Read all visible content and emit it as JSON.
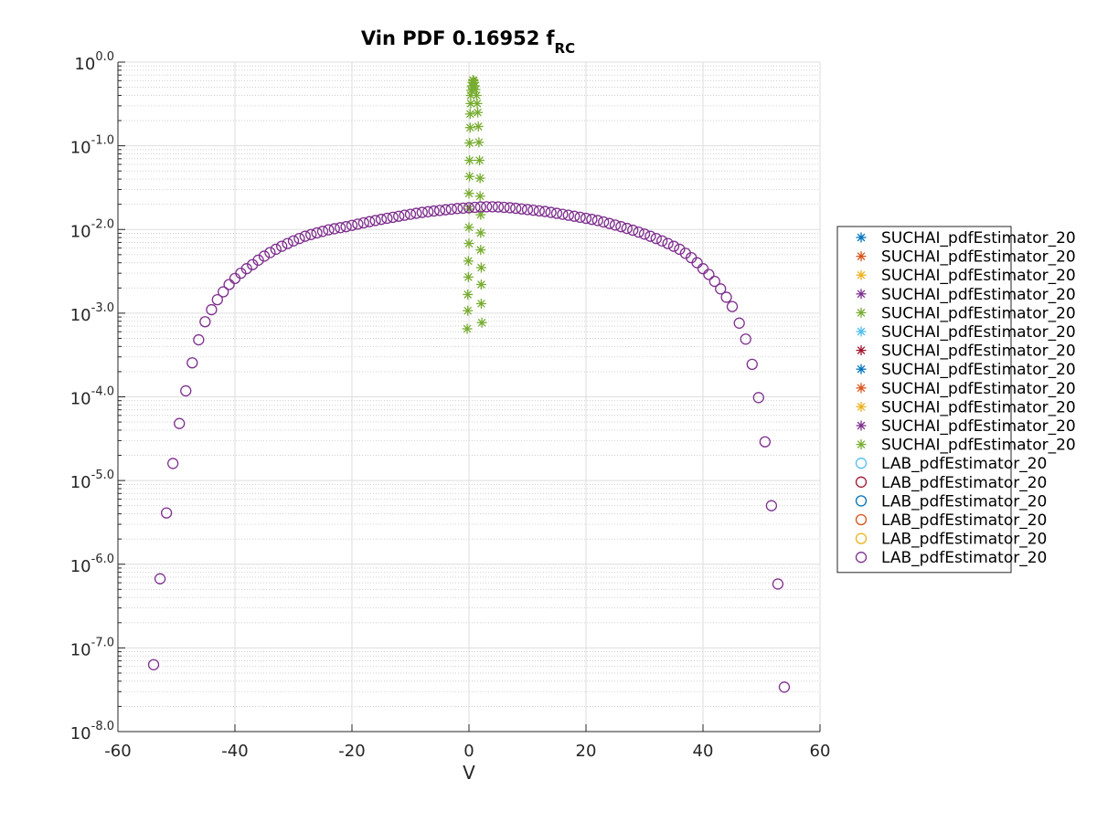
{
  "chart_data": {
    "type": "scatter",
    "title": "Vin PDF 0.16952",
    "title_subscript_prefix": "f",
    "title_subscript": "RC",
    "xlabel": "V",
    "ylabel": "",
    "xlim": [
      -60,
      60
    ],
    "ylim": [
      1e-08,
      1
    ],
    "yscale": "log",
    "grid": true,
    "minor_grid": true,
    "legend_position": "outside-right",
    "x_ticks": [
      -60,
      -40,
      -20,
      0,
      20,
      40,
      60
    ],
    "x_tick_labels": [
      "-60",
      "-40",
      "-20",
      "0",
      "20",
      "40",
      "60"
    ],
    "y_ticks": [
      {
        "base": "10",
        "exp": "0.0",
        "value": 1
      },
      {
        "base": "10",
        "exp": "-1.0",
        "value": 0.1
      },
      {
        "base": "10",
        "exp": "-2.0",
        "value": 0.01
      },
      {
        "base": "10",
        "exp": "-3.0",
        "value": 0.001
      },
      {
        "base": "10",
        "exp": "-4.0",
        "value": 0.0001
      },
      {
        "base": "10",
        "exp": "-5.0",
        "value": 1e-05
      },
      {
        "base": "10",
        "exp": "-6.0",
        "value": 1e-06
      },
      {
        "base": "10",
        "exp": "-7.0",
        "value": 1e-07
      },
      {
        "base": "10",
        "exp": "-8.0",
        "value": 1e-08
      }
    ],
    "legend": [
      {
        "name": "SUCHAI_pdfEstimator_20",
        "marker": "star",
        "color": "#0072BD"
      },
      {
        "name": "SUCHAI_pdfEstimator_20",
        "marker": "star",
        "color": "#D95319"
      },
      {
        "name": "SUCHAI_pdfEstimator_20",
        "marker": "star",
        "color": "#EDB120"
      },
      {
        "name": "SUCHAI_pdfEstimator_20",
        "marker": "star",
        "color": "#7E2F8E"
      },
      {
        "name": "SUCHAI_pdfEstimator_20",
        "marker": "star",
        "color": "#77AC30"
      },
      {
        "name": "SUCHAI_pdfEstimator_20",
        "marker": "star",
        "color": "#4DBEEE"
      },
      {
        "name": "SUCHAI_pdfEstimator_20",
        "marker": "star",
        "color": "#A2142F"
      },
      {
        "name": "SUCHAI_pdfEstimator_20",
        "marker": "star",
        "color": "#0072BD"
      },
      {
        "name": "SUCHAI_pdfEstimator_20",
        "marker": "star",
        "color": "#D95319"
      },
      {
        "name": "SUCHAI_pdfEstimator_20",
        "marker": "star",
        "color": "#EDB120"
      },
      {
        "name": "SUCHAI_pdfEstimator_20",
        "marker": "star",
        "color": "#7E2F8E"
      },
      {
        "name": "SUCHAI_pdfEstimator_20",
        "marker": "star",
        "color": "#77AC30"
      },
      {
        "name": "LAB_pdfEstimator_20",
        "marker": "circle",
        "color": "#4DBEEE"
      },
      {
        "name": "LAB_pdfEstimator_20",
        "marker": "circle",
        "color": "#A2142F"
      },
      {
        "name": "LAB_pdfEstimator_20",
        "marker": "circle",
        "color": "#0072BD"
      },
      {
        "name": "LAB_pdfEstimator_20",
        "marker": "circle",
        "color": "#D95319"
      },
      {
        "name": "LAB_pdfEstimator_20",
        "marker": "circle",
        "color": "#EDB120"
      },
      {
        "name": "LAB_pdfEstimator_20",
        "marker": "circle",
        "color": "#7E2F8E"
      }
    ],
    "series": [
      {
        "legend_index": 11,
        "marker": "star",
        "color": "#77AC30",
        "points": [
          [
            -0.3,
            0.00065
          ],
          [
            -0.2,
            0.00107
          ],
          [
            -0.2,
            0.00167
          ],
          [
            -0.1,
            0.0027
          ],
          [
            -0.1,
            0.0042
          ],
          [
            0.0,
            0.0068
          ],
          [
            0.0,
            0.0106
          ],
          [
            0.0,
            0.0175
          ],
          [
            0.0,
            0.027
          ],
          [
            0.1,
            0.043
          ],
          [
            0.1,
            0.067
          ],
          [
            0.1,
            0.108
          ],
          [
            0.2,
            0.165
          ],
          [
            0.2,
            0.24
          ],
          [
            0.3,
            0.32
          ],
          [
            0.3,
            0.4
          ],
          [
            0.4,
            0.46
          ],
          [
            0.5,
            0.52
          ],
          [
            0.6,
            0.57
          ],
          [
            0.7,
            0.61
          ],
          [
            0.8,
            0.6
          ],
          [
            0.9,
            0.57
          ],
          [
            1.0,
            0.52
          ],
          [
            1.1,
            0.47
          ],
          [
            1.3,
            0.4
          ],
          [
            1.4,
            0.32
          ],
          [
            1.5,
            0.25
          ],
          [
            1.6,
            0.17
          ],
          [
            1.7,
            0.11
          ],
          [
            1.8,
            0.067
          ],
          [
            1.9,
            0.041
          ],
          [
            1.9,
            0.025
          ],
          [
            2.0,
            0.015
          ],
          [
            2.0,
            0.0091
          ],
          [
            2.0,
            0.0057
          ],
          [
            2.1,
            0.0035
          ],
          [
            2.1,
            0.0022
          ],
          [
            2.1,
            0.0013
          ],
          [
            2.2,
            0.00077
          ]
        ]
      },
      {
        "legend_index": 17,
        "marker": "circle",
        "color": "#7E2F8E",
        "points": [
          [
            -53.9,
            6.3e-08
          ],
          [
            -52.8,
            6.7e-07
          ],
          [
            -51.7,
            4.1e-06
          ],
          [
            -50.6,
            1.6e-05
          ],
          [
            -49.5,
            4.8e-05
          ],
          [
            -48.4,
            0.000118
          ],
          [
            -47.3,
            0.000255
          ],
          [
            -46.2,
            0.00048
          ],
          [
            -45.1,
            0.00079
          ],
          [
            -44.0,
            0.0011
          ],
          [
            -43.0,
            0.00145
          ],
          [
            -42.0,
            0.0018
          ],
          [
            -41.0,
            0.0022
          ],
          [
            -40.0,
            0.0026
          ],
          [
            -39.0,
            0.003
          ],
          [
            -38.0,
            0.0034
          ],
          [
            -37.0,
            0.0038
          ],
          [
            -36.0,
            0.0043
          ],
          [
            -35.0,
            0.0048
          ],
          [
            -34.0,
            0.0053
          ],
          [
            -33.0,
            0.0058
          ],
          [
            -32.0,
            0.0063
          ],
          [
            -31.0,
            0.0068
          ],
          [
            -30.0,
            0.0073
          ],
          [
            -29.0,
            0.0078
          ],
          [
            -28.0,
            0.0083
          ],
          [
            -27.0,
            0.0087
          ],
          [
            -26.0,
            0.0091
          ],
          [
            -25.0,
            0.0095
          ],
          [
            -24.0,
            0.0099
          ],
          [
            -23.0,
            0.0102
          ],
          [
            -22.0,
            0.0105
          ],
          [
            -21.0,
            0.0108
          ],
          [
            -20.0,
            0.0112
          ],
          [
            -19.0,
            0.0116
          ],
          [
            -18.0,
            0.012
          ],
          [
            -17.0,
            0.0124
          ],
          [
            -16.0,
            0.0128
          ],
          [
            -15.0,
            0.0132
          ],
          [
            -14.0,
            0.0136
          ],
          [
            -13.0,
            0.014
          ],
          [
            -12.0,
            0.0144
          ],
          [
            -11.0,
            0.0148
          ],
          [
            -10.0,
            0.0152
          ],
          [
            -9.0,
            0.0156
          ],
          [
            -8.0,
            0.016
          ],
          [
            -7.0,
            0.0163
          ],
          [
            -6.0,
            0.0166
          ],
          [
            -5.0,
            0.0169
          ],
          [
            -4.0,
            0.0172
          ],
          [
            -3.0,
            0.0175
          ],
          [
            -2.0,
            0.0178
          ],
          [
            -1.0,
            0.018
          ],
          [
            0.0,
            0.0182
          ],
          [
            1.0,
            0.0184
          ],
          [
            2.0,
            0.0186
          ],
          [
            3.0,
            0.0187
          ],
          [
            4.0,
            0.0187
          ],
          [
            5.0,
            0.0186
          ],
          [
            6.0,
            0.0184
          ],
          [
            7.0,
            0.0182
          ],
          [
            8.0,
            0.0179
          ],
          [
            9.0,
            0.0176
          ],
          [
            10.0,
            0.0173
          ],
          [
            11.0,
            0.017
          ],
          [
            12.0,
            0.0167
          ],
          [
            13.0,
            0.0164
          ],
          [
            14.0,
            0.016
          ],
          [
            15.0,
            0.0156
          ],
          [
            16.0,
            0.0152
          ],
          [
            17.0,
            0.0148
          ],
          [
            18.0,
            0.0144
          ],
          [
            19.0,
            0.014
          ],
          [
            20.0,
            0.0136
          ],
          [
            21.0,
            0.0132
          ],
          [
            22.0,
            0.0128
          ],
          [
            23.0,
            0.0123
          ],
          [
            24.0,
            0.0118
          ],
          [
            25.0,
            0.0113
          ],
          [
            26.0,
            0.0108
          ],
          [
            27.0,
            0.0103
          ],
          [
            28.0,
            0.0098
          ],
          [
            29.0,
            0.0093
          ],
          [
            30.0,
            0.0088
          ],
          [
            31.0,
            0.0083
          ],
          [
            32.0,
            0.0078
          ],
          [
            33.0,
            0.0073
          ],
          [
            34.0,
            0.0068
          ],
          [
            35.0,
            0.0063
          ],
          [
            36.0,
            0.0058
          ],
          [
            37.0,
            0.0052
          ],
          [
            38.0,
            0.0046
          ],
          [
            39.0,
            0.004
          ],
          [
            40.0,
            0.0034
          ],
          [
            41.0,
            0.0029
          ],
          [
            42.0,
            0.0024
          ],
          [
            43.0,
            0.00195
          ],
          [
            44.0,
            0.00155
          ],
          [
            45.0,
            0.0012
          ],
          [
            46.2,
            0.00076
          ],
          [
            47.3,
            0.00049
          ],
          [
            48.4,
            0.000245
          ],
          [
            49.5,
            9.8e-05
          ],
          [
            50.6,
            2.9e-05
          ],
          [
            51.7,
            5e-06
          ],
          [
            52.8,
            5.8e-07
          ],
          [
            53.9,
            3.4e-08
          ]
        ]
      }
    ]
  }
}
